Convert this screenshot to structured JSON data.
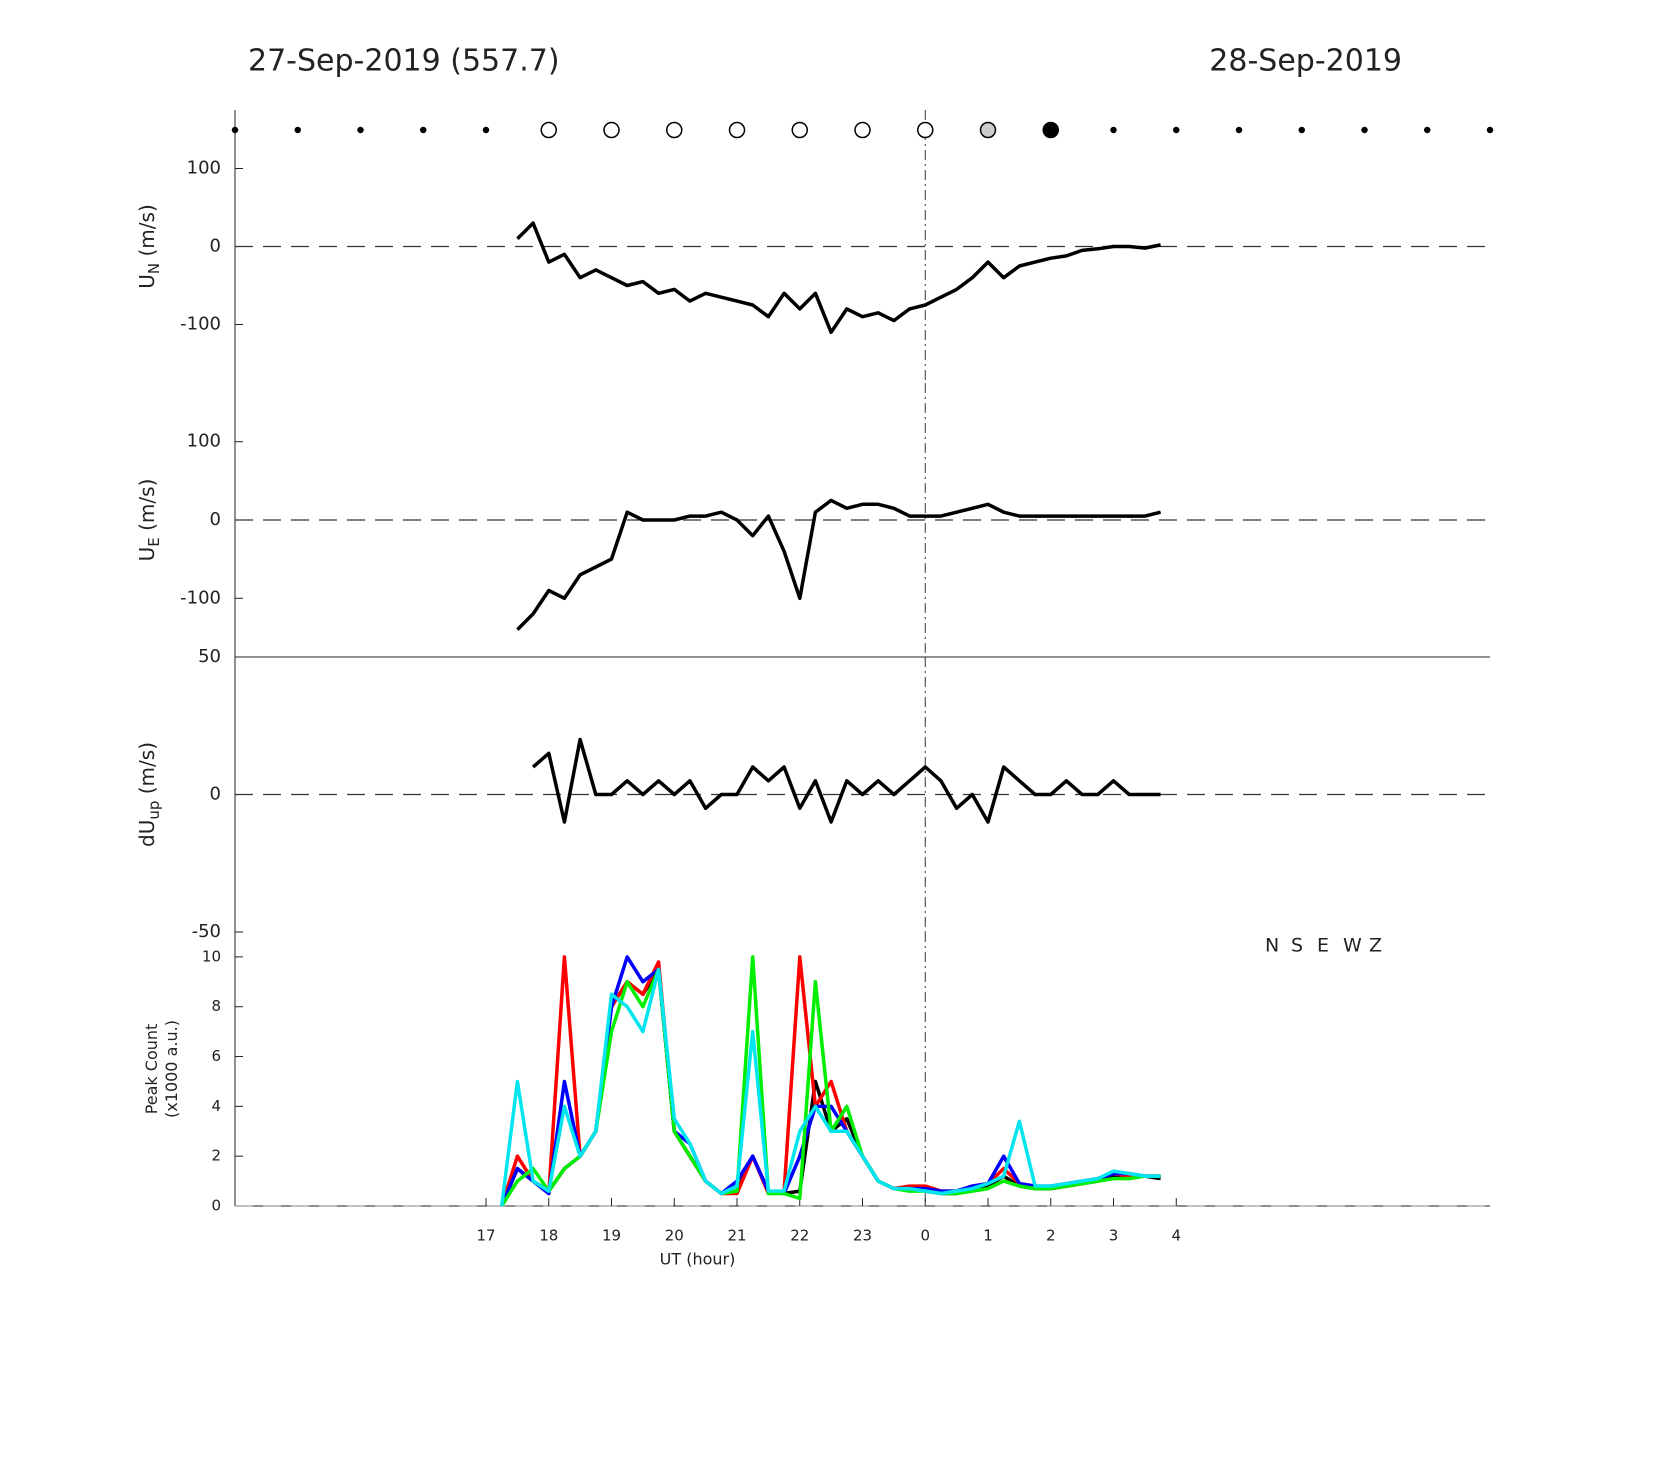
{
  "header": {
    "left": "27-Sep-2019 (557.7)",
    "right": "28-Sep-2019"
  },
  "markers": {
    "x": [
      13,
      14,
      15,
      16,
      17,
      18,
      19,
      20,
      21,
      22,
      23,
      24,
      25,
      26,
      27,
      28,
      29,
      30,
      31,
      32,
      33
    ],
    "fill": [
      "#000",
      "#000",
      "#000",
      "#000",
      "#000",
      "#fff",
      "#fff",
      "#fff",
      "#fff",
      "#fff",
      "#fff",
      "#fff",
      "#ccc",
      "#000",
      "#000",
      "#000",
      "#000",
      "#000",
      "#000",
      "#000",
      "#000"
    ],
    "size": [
      2.5,
      2.5,
      2.5,
      2.5,
      2.5,
      7.5,
      7.5,
      7.5,
      7.5,
      7.5,
      7.5,
      7.5,
      7.5,
      7.5,
      2.5,
      2.5,
      2.5,
      2.5,
      2.5,
      2.5,
      2.5
    ]
  },
  "chart_data": [
    {
      "type": "line",
      "ylabel": [
        "U",
        "N",
        " (m/s)"
      ],
      "xlim": [
        13,
        33
      ],
      "ylim": [
        -175,
        175
      ],
      "yticks": [
        -100,
        0,
        100
      ],
      "hline": 0,
      "vline": 24,
      "x": [
        17.25,
        17.5,
        17.75,
        18,
        18.25,
        18.5,
        18.75,
        19,
        19.25,
        19.5,
        19.75,
        20,
        20.25,
        20.5,
        20.75,
        21,
        21.25,
        21.5,
        21.75,
        22,
        22.25,
        22.5,
        22.75,
        23,
        23.25,
        23.5,
        23.75,
        24,
        24.25,
        24.5,
        24.75,
        25,
        25.25,
        25.5,
        25.75,
        26,
        26.25,
        26.5,
        26.75,
        27,
        27.25,
        27.5,
        27.75
      ],
      "series": [
        {
          "color": "#000",
          "values": [
            null,
            10,
            30,
            -20,
            -10,
            -40,
            -30,
            -40,
            -50,
            -45,
            -60,
            -55,
            -70,
            -60,
            -65,
            -70,
            -75,
            -90,
            -60,
            -80,
            -60,
            -110,
            -80,
            -90,
            -85,
            -95,
            -80,
            -75,
            -65,
            -55,
            -40,
            -20,
            -40,
            -25,
            -20,
            -15,
            -12,
            -5,
            -3,
            0,
            0,
            -2,
            2
          ]
        }
      ]
    },
    {
      "type": "line",
      "ylabel": [
        "U",
        "E",
        " (m/s)"
      ],
      "xlim": [
        13,
        33
      ],
      "ylim": [
        -175,
        175
      ],
      "yticks": [
        -100,
        0,
        100
      ],
      "hline": 0,
      "vline": 24,
      "x": [
        17.25,
        17.5,
        17.75,
        18,
        18.25,
        18.5,
        18.75,
        19,
        19.25,
        19.5,
        19.75,
        20,
        20.25,
        20.5,
        20.75,
        21,
        21.25,
        21.5,
        21.75,
        22,
        22.25,
        22.5,
        22.75,
        23,
        23.25,
        23.5,
        23.75,
        24,
        24.25,
        24.5,
        24.75,
        25,
        25.25,
        25.5,
        25.75,
        26,
        26.25,
        26.5,
        26.75,
        27,
        27.25,
        27.5,
        27.75
      ],
      "series": [
        {
          "color": "#000",
          "values": [
            null,
            -140,
            -120,
            -90,
            -100,
            -70,
            -60,
            -50,
            10,
            0,
            0,
            0,
            5,
            5,
            10,
            0,
            -20,
            5,
            -40,
            -100,
            10,
            25,
            15,
            20,
            20,
            15,
            5,
            5,
            5,
            10,
            15,
            20,
            10,
            5,
            5,
            5,
            5,
            5,
            5,
            5,
            5,
            5,
            10
          ]
        }
      ]
    },
    {
      "type": "line",
      "ylabel": [
        "dU",
        "up",
        " (m/s)"
      ],
      "xlim": [
        13,
        33
      ],
      "ylim": [
        -50,
        50
      ],
      "yticks": [
        -50,
        0,
        50
      ],
      "hline": 0,
      "vline": 24,
      "x": [
        17.25,
        17.5,
        17.75,
        18,
        18.25,
        18.5,
        18.75,
        19,
        19.25,
        19.5,
        19.75,
        20,
        20.25,
        20.5,
        20.75,
        21,
        21.25,
        21.5,
        21.75,
        22,
        22.25,
        22.5,
        22.75,
        23,
        23.25,
        23.5,
        23.75,
        24,
        24.25,
        24.5,
        24.75,
        25,
        25.25,
        25.5,
        25.75,
        26,
        26.25,
        26.5,
        26.75,
        27,
        27.25,
        27.5,
        27.75
      ],
      "series": [
        {
          "color": "#000",
          "values": [
            null,
            null,
            10,
            15,
            -10,
            20,
            0,
            0,
            5,
            0,
            5,
            0,
            5,
            -5,
            0,
            0,
            10,
            5,
            10,
            -5,
            5,
            -10,
            5,
            0,
            5,
            0,
            5,
            10,
            5,
            -5,
            0,
            -10,
            10,
            5,
            0,
            0,
            5,
            0,
            0,
            5,
            0,
            0,
            0
          ]
        }
      ]
    },
    {
      "type": "line",
      "ylabel": [
        "Peak Count",
        "(x1000 a.u.)"
      ],
      "xlabel": "UT (hour)",
      "xlim": [
        13,
        33
      ],
      "ylim": [
        0,
        11
      ],
      "yticks": [
        0,
        2,
        4,
        6,
        8,
        10
      ],
      "hline": 0,
      "vline": 24,
      "xticks": [
        17,
        18,
        19,
        20,
        21,
        22,
        23,
        {
          "value": 24,
          "label": "0"
        },
        {
          "value": 25,
          "label": "1"
        },
        {
          "value": 26,
          "label": "2"
        },
        {
          "value": 27,
          "label": "3"
        },
        {
          "value": 28,
          "label": "4"
        }
      ],
      "x": [
        17.25,
        17.5,
        17.75,
        18,
        18.25,
        18.5,
        18.75,
        19,
        19.25,
        19.5,
        19.75,
        20,
        20.25,
        20.5,
        20.75,
        21,
        21.25,
        21.5,
        21.75,
        22,
        22.25,
        22.5,
        22.75,
        23,
        23.25,
        23.5,
        23.75,
        24,
        24.25,
        24.5,
        24.75,
        25,
        25.25,
        25.5,
        25.75,
        26,
        26.25,
        26.5,
        26.75,
        27,
        27.25,
        27.5,
        27.75
      ],
      "series": [
        {
          "name": "N",
          "color": "#000000",
          "values": [
            0,
            1.5,
            1,
            0.6,
            1.5,
            2,
            3,
            8,
            9,
            8.5,
            9.5,
            3,
            2,
            1,
            0.5,
            0.6,
            2,
            0.6,
            0.5,
            0.6,
            5,
            3,
            3.5,
            2,
            1,
            0.7,
            0.7,
            0.6,
            0.5,
            0.5,
            0.7,
            0.8,
            1.2,
            0.8,
            0.7,
            0.7,
            0.8,
            0.9,
            1,
            1.2,
            1.2,
            1.2,
            1.1
          ]
        },
        {
          "name": "S",
          "color": "#ff0000",
          "values": [
            0,
            2,
            1,
            0.5,
            10,
            2,
            3,
            8,
            9,
            8.5,
            9.8,
            3,
            2,
            1,
            0.5,
            0.5,
            2,
            0.5,
            0.6,
            10,
            4,
            5,
            3,
            2,
            1,
            0.7,
            0.8,
            0.8,
            0.6,
            0.6,
            0.8,
            0.9,
            1.5,
            0.9,
            0.8,
            0.7,
            0.8,
            0.9,
            1.1,
            1.3,
            1.2,
            1.2,
            1.2
          ]
        },
        {
          "name": "E",
          "color": "#0000ff",
          "values": [
            0,
            1.5,
            1,
            0.5,
            5,
            2,
            3,
            8,
            10,
            9,
            9.5,
            3,
            2.5,
            1,
            0.5,
            1,
            2,
            0.6,
            0.5,
            2,
            4,
            4,
            3,
            2,
            1,
            0.7,
            0.7,
            0.7,
            0.6,
            0.6,
            0.8,
            0.9,
            2,
            0.9,
            0.8,
            0.8,
            0.9,
            1,
            1.1,
            1.3,
            1.3,
            1.2,
            1.2
          ]
        },
        {
          "name": "W",
          "color": "#00ee00",
          "values": [
            0,
            1,
            1.5,
            0.6,
            1.5,
            2,
            3,
            7,
            9,
            8,
            9.5,
            3,
            2,
            1,
            0.5,
            0.6,
            10,
            0.5,
            0.5,
            0.3,
            9,
            3,
            4,
            2,
            1,
            0.7,
            0.6,
            0.6,
            0.5,
            0.5,
            0.6,
            0.7,
            1,
            0.8,
            0.7,
            0.7,
            0.8,
            0.9,
            1,
            1.1,
            1.1,
            1.2,
            1.2
          ]
        },
        {
          "name": "Z",
          "color": "#00e5ee",
          "values": [
            0,
            5,
            1,
            0.6,
            4,
            2,
            3,
            8.5,
            8,
            7,
            9.5,
            3.5,
            2.5,
            1,
            0.5,
            0.8,
            7,
            0.6,
            0.6,
            3,
            4,
            3,
            3,
            2,
            1,
            0.7,
            0.7,
            0.6,
            0.5,
            0.6,
            0.7,
            0.9,
            1.2,
            3.4,
            0.8,
            0.8,
            0.9,
            1,
            1.1,
            1.4,
            1.3,
            1.2,
            1.2
          ]
        }
      ]
    }
  ]
}
